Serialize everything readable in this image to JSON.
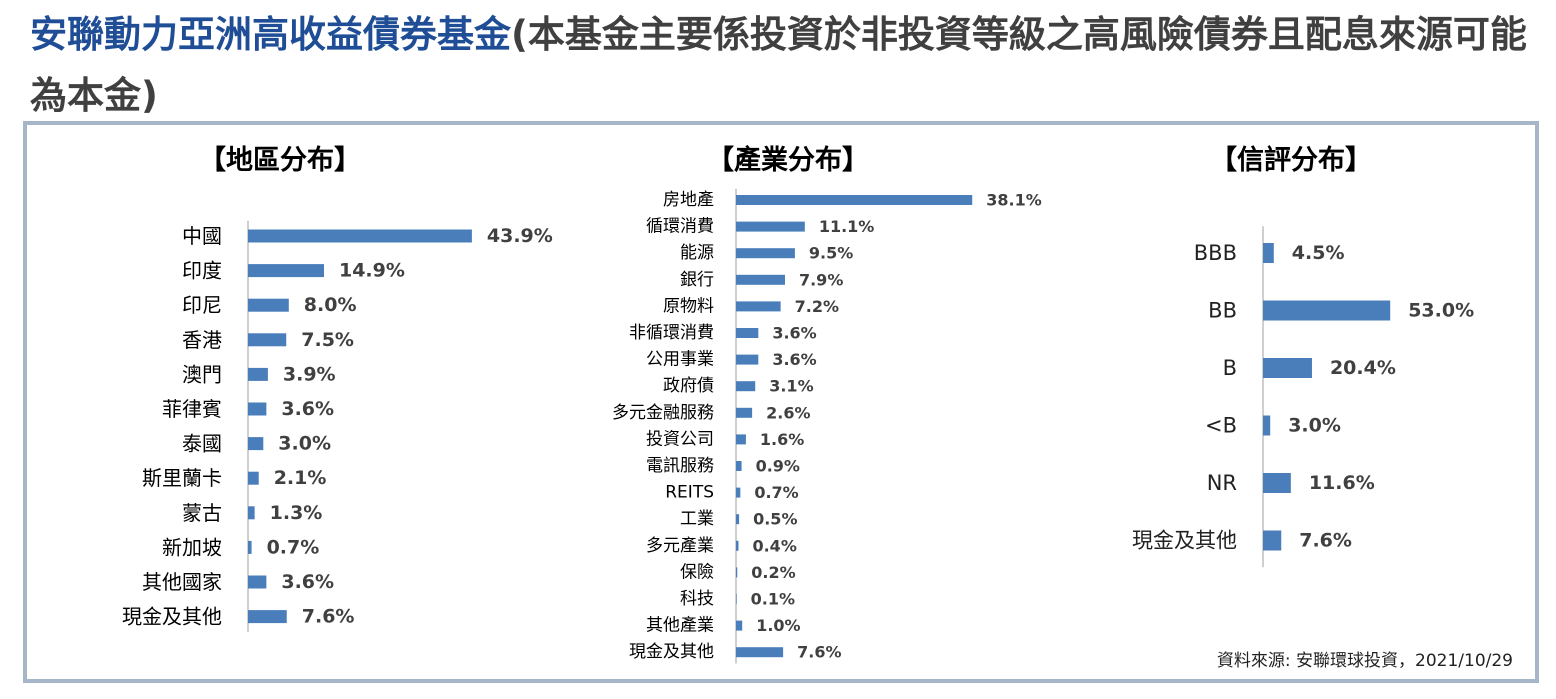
{
  "title": {
    "fund_name": "安聯動力亞洲高收益債券基金",
    "note": "(本基金主要係投資於非投資等級之高風險債券且配息來源可能為本金)"
  },
  "source": "資料來源: 安聯環球投資，2021/10/29",
  "colors": {
    "bar": "#4a7ebb",
    "axis": "#bfbfbf",
    "title_accent": "#1f4e96",
    "frame": "#a4b6c7"
  },
  "chart_data": [
    {
      "type": "bar",
      "orientation": "horizontal",
      "title": "【地區分布】",
      "categories": [
        "中國",
        "印度",
        "印尼",
        "香港",
        "澳門",
        "菲律賓",
        "泰國",
        "斯里蘭卡",
        "蒙古",
        "新加坡",
        "其他國家",
        "現金及其他"
      ],
      "values": [
        43.9,
        14.9,
        8.0,
        7.5,
        3.9,
        3.6,
        3.0,
        2.1,
        1.3,
        0.7,
        3.6,
        7.6
      ],
      "labels": [
        "43.9%",
        "14.9%",
        "8.0%",
        "7.5%",
        "3.9%",
        "3.6%",
        "3.0%",
        "2.1%",
        "1.3%",
        "0.7%",
        "3.6%",
        "7.6%"
      ],
      "unit": "%"
    },
    {
      "type": "bar",
      "orientation": "horizontal",
      "title": "【產業分布】",
      "categories": [
        "房地產",
        "循環消費",
        "能源",
        "銀行",
        "原物料",
        "非循環消費",
        "公用事業",
        "政府債",
        "多元金融服務",
        "投資公司",
        "電訊服務",
        "REITS",
        "工業",
        "多元產業",
        "保險",
        "科技",
        "其他產業",
        "現金及其他"
      ],
      "values": [
        38.1,
        11.1,
        9.5,
        7.9,
        7.2,
        3.6,
        3.6,
        3.1,
        2.6,
        1.6,
        0.9,
        0.7,
        0.5,
        0.4,
        0.2,
        0.1,
        1.0,
        7.6
      ],
      "labels": [
        "38.1%",
        "11.1%",
        "9.5%",
        "7.9%",
        "7.2%",
        "3.6%",
        "3.6%",
        "3.1%",
        "2.6%",
        "1.6%",
        "0.9%",
        "0.7%",
        "0.5%",
        "0.4%",
        "0.2%",
        "0.1%",
        "1.0%",
        "7.6%"
      ],
      "unit": "%"
    },
    {
      "type": "bar",
      "orientation": "horizontal",
      "title": "【信評分布】",
      "categories": [
        "BBB",
        "BB",
        "B",
        "<B",
        "NR",
        "現金及其他"
      ],
      "values": [
        4.5,
        53.0,
        20.4,
        3.0,
        11.6,
        7.6
      ],
      "labels": [
        "4.5%",
        "53.0%",
        "20.4%",
        "3.0%",
        "11.6%",
        "7.6%"
      ],
      "unit": "%"
    }
  ]
}
